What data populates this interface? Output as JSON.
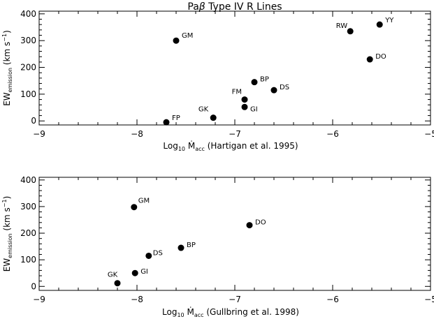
{
  "chart_data": [
    {
      "type": "scatter",
      "title_parts": [
        "Pa",
        "β",
        " Type IV R Lines"
      ],
      "xlabel": {
        "base": "Log",
        "sub10": "10",
        "mdot": "M",
        "acc": "acc",
        "ref": "(Hartigan et al. 1995)"
      },
      "ylabel": {
        "base": "EW",
        "sub": "emission",
        "unit": "(km s",
        "exp": "−1",
        "close": ")"
      },
      "xlim": [
        -9,
        -5
      ],
      "ylim": [
        -15,
        410
      ],
      "xticks": [
        {
          "v": -9,
          "t": "−9"
        },
        {
          "v": -8,
          "t": "−8"
        },
        {
          "v": -7,
          "t": "−7"
        },
        {
          "v": -6,
          "t": "−6"
        },
        {
          "v": -5,
          "t": "−5"
        }
      ],
      "yticks": [
        {
          "v": 0,
          "t": "0"
        },
        {
          "v": 100,
          "t": "100"
        },
        {
          "v": 200,
          "t": "200"
        },
        {
          "v": 300,
          "t": "300"
        },
        {
          "v": 400,
          "t": "400"
        }
      ],
      "points": [
        {
          "label": "FP",
          "x": -7.7,
          "y": -5,
          "lx": 8,
          "ly": -3
        },
        {
          "label": "GM",
          "x": -7.6,
          "y": 300,
          "lx": 8,
          "ly": -4
        },
        {
          "label": "GK",
          "x": -7.22,
          "y": 12,
          "lx": -7,
          "ly": -9,
          "anchor": "end"
        },
        {
          "label": "FM",
          "x": -6.9,
          "y": 80,
          "lx": -4,
          "ly": -8,
          "anchor": "end"
        },
        {
          "label": "GI",
          "x": -6.9,
          "y": 52,
          "lx": 8,
          "ly": 6
        },
        {
          "label": "BP",
          "x": -6.8,
          "y": 145,
          "lx": 8,
          "ly": -1
        },
        {
          "label": "DS",
          "x": -6.6,
          "y": 115,
          "lx": 8,
          "ly": -1
        },
        {
          "label": "RW",
          "x": -5.82,
          "y": 335,
          "lx": -4,
          "ly": -5,
          "anchor": "end"
        },
        {
          "label": "YY",
          "x": -5.52,
          "y": 360,
          "lx": 8,
          "ly": -3
        },
        {
          "label": "DO",
          "x": -5.62,
          "y": 230,
          "lx": 8,
          "ly": -1
        }
      ]
    },
    {
      "type": "scatter",
      "xlabel": {
        "base": "Log",
        "sub10": "10",
        "mdot": "M",
        "acc": "acc",
        "ref": "(Gullbring et al. 1998)"
      },
      "ylabel": {
        "base": "EW",
        "sub": "emission",
        "unit": "(km s",
        "exp": "−1",
        "close": ")"
      },
      "xlim": [
        -9,
        -5
      ],
      "ylim": [
        -15,
        410
      ],
      "xticks": [
        {
          "v": -9,
          "t": "−9"
        },
        {
          "v": -8,
          "t": "−8"
        },
        {
          "v": -7,
          "t": "−7"
        },
        {
          "v": -6,
          "t": "−6"
        },
        {
          "v": -5,
          "t": "−5"
        }
      ],
      "yticks": [
        {
          "v": 0,
          "t": "0"
        },
        {
          "v": 100,
          "t": "100"
        },
        {
          "v": 200,
          "t": "200"
        },
        {
          "v": 300,
          "t": "300"
        },
        {
          "v": 400,
          "t": "400"
        }
      ],
      "points": [
        {
          "label": "GM",
          "x": -8.03,
          "y": 298,
          "lx": 6,
          "ly": -6
        },
        {
          "label": "DO",
          "x": -6.85,
          "y": 230,
          "lx": 8,
          "ly": -1
        },
        {
          "label": "BP",
          "x": -7.55,
          "y": 145,
          "lx": 8,
          "ly": -1
        },
        {
          "label": "DS",
          "x": -7.88,
          "y": 115,
          "lx": 6,
          "ly": -1
        },
        {
          "label": "GI",
          "x": -8.02,
          "y": 50,
          "lx": 8,
          "ly": 1
        },
        {
          "label": "GK",
          "x": -8.2,
          "y": 12,
          "lx": -7,
          "ly": -9,
          "anchor": "middle"
        }
      ]
    }
  ]
}
